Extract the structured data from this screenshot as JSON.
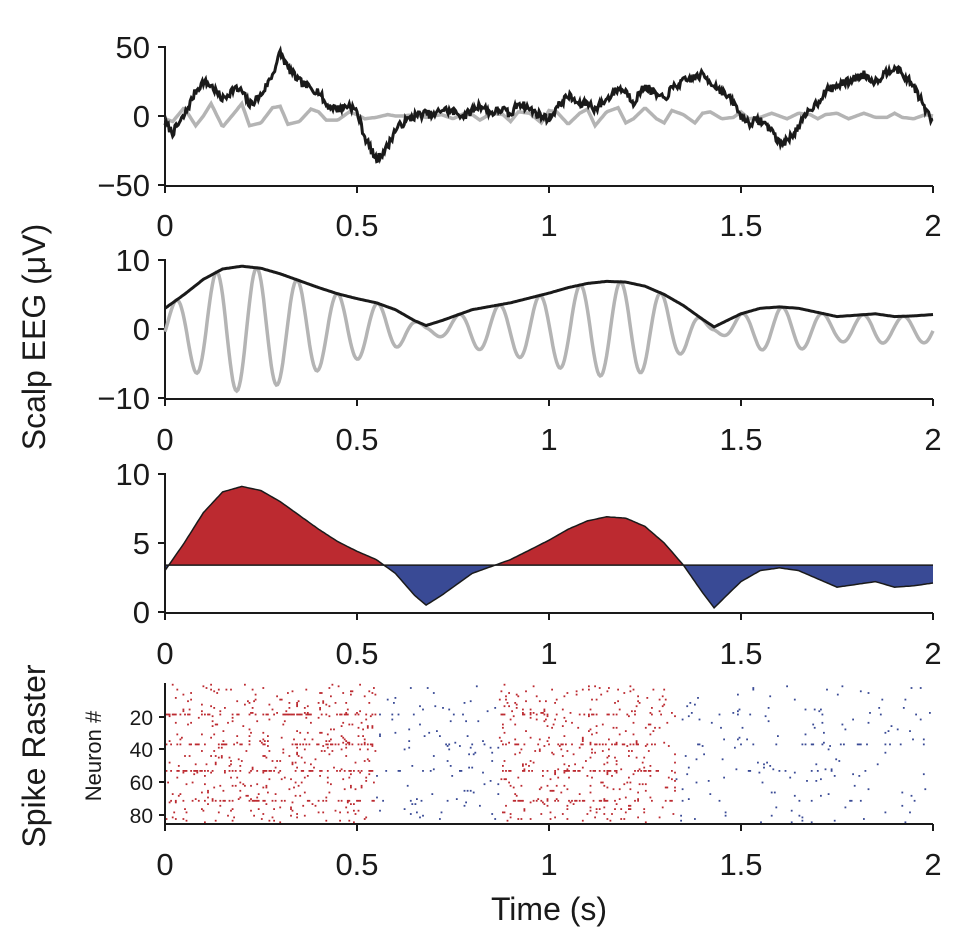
{
  "chart_data": [
    {
      "type": "line",
      "panel": "raw-eeg",
      "x_ticks": [
        "0",
        "0.5",
        "1",
        "1.5",
        "2"
      ],
      "y_ticks": [
        "50",
        "0",
        "−50"
      ],
      "xlim": [
        0,
        2
      ],
      "ylim": [
        -50,
        50
      ],
      "series": [
        {
          "color": "#1a1a1a",
          "x": [
            0,
            0.02,
            0.05,
            0.08,
            0.1,
            0.12,
            0.15,
            0.18,
            0.2,
            0.22,
            0.25,
            0.28,
            0.3,
            0.32,
            0.35,
            0.38,
            0.4,
            0.42,
            0.45,
            0.48,
            0.5,
            0.52,
            0.55,
            0.58,
            0.6,
            0.62,
            0.65,
            0.68,
            0.7,
            0.72,
            0.75,
            0.78,
            0.8,
            0.82,
            0.85,
            0.88,
            0.9,
            0.92,
            0.95,
            0.98,
            1.0,
            1.02,
            1.05,
            1.08,
            1.1,
            1.12,
            1.15,
            1.18,
            1.2,
            1.22,
            1.25,
            1.28,
            1.3,
            1.32,
            1.35,
            1.38,
            1.4,
            1.42,
            1.45,
            1.48,
            1.5,
            1.52,
            1.55,
            1.58,
            1.6,
            1.62,
            1.65,
            1.68,
            1.7,
            1.72,
            1.75,
            1.78,
            1.8,
            1.82,
            1.85,
            1.88,
            1.9,
            1.92,
            1.95,
            1.98,
            2.0
          ],
          "y": [
            -5,
            -12,
            0,
            18,
            25,
            22,
            12,
            20,
            18,
            8,
            15,
            30,
            46,
            35,
            25,
            20,
            18,
            8,
            5,
            8,
            3,
            -15,
            -32,
            -22,
            -10,
            -5,
            0,
            2,
            0,
            5,
            3,
            0,
            4,
            8,
            2,
            5,
            0,
            10,
            5,
            0,
            -2,
            6,
            15,
            8,
            10,
            5,
            12,
            20,
            18,
            10,
            22,
            15,
            12,
            20,
            25,
            28,
            30,
            25,
            18,
            10,
            0,
            -5,
            -3,
            -10,
            -20,
            -18,
            -8,
            5,
            10,
            18,
            22,
            25,
            28,
            30,
            25,
            32,
            36,
            30,
            22,
            5,
            -5
          ]
        },
        {
          "color": "#b4b4b4",
          "x": [
            0,
            0.02,
            0.05,
            0.08,
            0.1,
            0.12,
            0.15,
            0.18,
            0.2,
            0.22,
            0.25,
            0.28,
            0.3,
            0.32,
            0.35,
            0.38,
            0.4,
            0.42,
            0.45,
            0.48,
            0.5,
            0.52,
            0.55,
            0.58,
            0.6,
            0.62,
            0.65,
            0.68,
            0.7,
            0.72,
            0.75,
            0.78,
            0.8,
            0.82,
            0.85,
            0.88,
            0.9,
            0.92,
            0.95,
            0.98,
            1.0,
            1.02,
            1.05,
            1.08,
            1.1,
            1.12,
            1.15,
            1.18,
            1.2,
            1.22,
            1.25,
            1.28,
            1.3,
            1.32,
            1.35,
            1.38,
            1.4,
            1.42,
            1.45,
            1.48,
            1.5,
            1.52,
            1.55,
            1.58,
            1.6,
            1.62,
            1.65,
            1.68,
            1.7,
            1.72,
            1.75,
            1.78,
            1.8,
            1.82,
            1.85,
            1.88,
            1.9,
            1.92,
            1.95,
            1.98,
            2.0
          ],
          "y": [
            -2,
            -4,
            6,
            -7,
            0,
            9,
            -8,
            2,
            9,
            -7,
            -5,
            6,
            7,
            -6,
            -4,
            5,
            3,
            -3,
            -3,
            3,
            1,
            -2,
            -1,
            1,
            0,
            0,
            1,
            -1,
            0,
            1,
            -2,
            2,
            1,
            -3,
            2,
            1,
            -4,
            3,
            2,
            -5,
            4,
            3,
            -6,
            2,
            5,
            -7,
            3,
            6,
            -5,
            -2,
            6,
            -2,
            -5,
            4,
            1,
            -5,
            2,
            3,
            -2,
            -1,
            3,
            -2,
            -1,
            2,
            0,
            -2,
            2,
            1,
            -2,
            1,
            2,
            -2,
            0,
            2,
            -1,
            -1,
            2,
            -1,
            -2,
            1,
            0
          ]
        }
      ]
    },
    {
      "type": "line",
      "panel": "filtered-eeg",
      "x_ticks": [
        "0",
        "0.5",
        "1",
        "1.5",
        "2"
      ],
      "y_ticks": [
        "10",
        "0",
        "−10"
      ],
      "ylabel": "Scalp EEG (μV)",
      "xlim": [
        0,
        2
      ],
      "ylim": [
        -10,
        10
      ],
      "series": [
        {
          "color": "#1a1a1a",
          "x": [
            0,
            0.05,
            0.1,
            0.15,
            0.2,
            0.25,
            0.3,
            0.35,
            0.4,
            0.45,
            0.5,
            0.55,
            0.6,
            0.65,
            0.68,
            0.72,
            0.8,
            0.9,
            1.0,
            1.05,
            1.1,
            1.15,
            1.2,
            1.25,
            1.3,
            1.35,
            1.4,
            1.43,
            1.47,
            1.5,
            1.55,
            1.6,
            1.65,
            1.7,
            1.75,
            1.8,
            1.85,
            1.9,
            1.95,
            2.0
          ],
          "y": [
            3,
            5,
            7.2,
            8.7,
            9.1,
            8.8,
            8.0,
            7.0,
            6.0,
            5.1,
            4.4,
            3.8,
            2.8,
            1.2,
            0.5,
            1.2,
            2.8,
            3.8,
            5.2,
            6.0,
            6.6,
            6.9,
            6.8,
            6.2,
            5.0,
            3.4,
            1.4,
            0.3,
            1.4,
            2.2,
            3.0,
            3.2,
            3.0,
            2.4,
            1.8,
            2.0,
            2.2,
            1.8,
            1.9,
            2.1
          ]
        },
        {
          "color": "#b4b4b4",
          "frequency_hz": 9.5,
          "x_envelope": [
            0,
            0.05,
            0.1,
            0.15,
            0.2,
            0.25,
            0.3,
            0.35,
            0.4,
            0.45,
            0.5,
            0.55,
            0.6,
            0.65,
            0.68,
            0.72,
            0.8,
            0.9,
            1.0,
            1.05,
            1.1,
            1.15,
            1.2,
            1.25,
            1.3,
            1.35,
            1.4,
            1.43,
            1.47,
            1.5,
            1.55,
            1.6,
            1.65,
            1.7,
            1.75,
            1.8,
            1.85,
            1.9,
            1.95,
            2.0
          ],
          "envelope": [
            3,
            5,
            7.2,
            8.7,
            9.1,
            8.8,
            8.0,
            7.0,
            6.0,
            5.1,
            4.4,
            3.8,
            2.8,
            1.2,
            0.5,
            1.2,
            2.8,
            3.8,
            5.2,
            6.0,
            6.6,
            6.9,
            6.8,
            6.2,
            5.0,
            3.4,
            1.4,
            0.3,
            1.4,
            2.2,
            3.0,
            3.2,
            3.0,
            2.4,
            1.8,
            2.0,
            2.2,
            1.8,
            1.9,
            2.1
          ]
        }
      ]
    },
    {
      "type": "area",
      "panel": "envelope-threshold",
      "x_ticks": [
        "0",
        "0.5",
        "1",
        "1.5",
        "2"
      ],
      "y_ticks": [
        "10",
        "5",
        "0"
      ],
      "xlim": [
        0,
        2
      ],
      "ylim": [
        0,
        10
      ],
      "threshold": 3.4,
      "above_color": "#bc2a30",
      "below_color": "#394a95",
      "x": [
        0,
        0.05,
        0.1,
        0.15,
        0.2,
        0.25,
        0.3,
        0.35,
        0.4,
        0.45,
        0.5,
        0.55,
        0.6,
        0.65,
        0.68,
        0.72,
        0.8,
        0.9,
        1.0,
        1.05,
        1.1,
        1.15,
        1.2,
        1.25,
        1.3,
        1.35,
        1.4,
        1.43,
        1.47,
        1.5,
        1.55,
        1.6,
        1.65,
        1.7,
        1.75,
        1.8,
        1.85,
        1.9,
        1.95,
        2.0
      ],
      "y": [
        3,
        5,
        7.2,
        8.7,
        9.1,
        8.8,
        8.0,
        7.0,
        6.0,
        5.1,
        4.4,
        3.8,
        2.8,
        1.2,
        0.5,
        1.2,
        2.8,
        3.8,
        5.2,
        6.0,
        6.6,
        6.9,
        6.8,
        6.2,
        5.0,
        3.4,
        1.4,
        0.3,
        1.4,
        2.2,
        3.0,
        3.2,
        3.0,
        2.4,
        1.8,
        2.0,
        2.2,
        1.8,
        1.9,
        2.1
      ]
    },
    {
      "type": "scatter",
      "panel": "spike-raster",
      "title_left": "Spike Raster",
      "ylabel": "Neuron #",
      "xlabel": "Time (s)",
      "x_ticks": [
        "0",
        "0.5",
        "1",
        "1.5",
        "2"
      ],
      "y_ticks": [
        "20",
        "40",
        "60",
        "80"
      ],
      "xlim": [
        0,
        2
      ],
      "ylim": [
        0,
        85
      ],
      "colors": {
        "up_state": "#bc2a30",
        "down_state": "#394a95"
      },
      "up_state_intervals": [
        [
          0,
          0.55
        ],
        [
          0.87,
          1.33
        ]
      ],
      "dense_neurons": [
        19,
        37,
        53,
        71
      ],
      "n_neurons": 84,
      "rate_up_hz": 9,
      "rate_down_hz": 3
    }
  ]
}
